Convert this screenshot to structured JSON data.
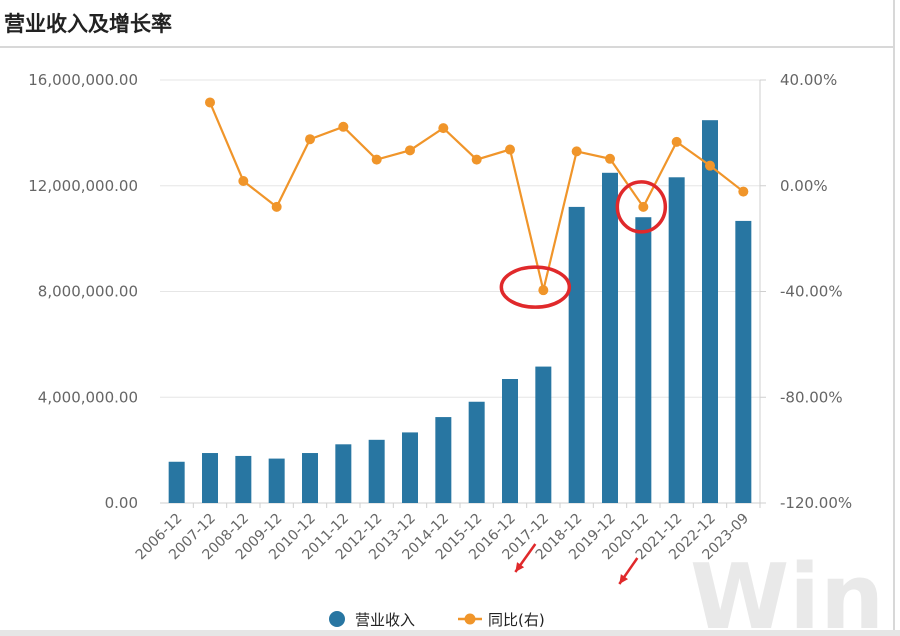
{
  "page": {
    "title": "营业收入及增长率"
  },
  "chart_data": {
    "type": "bar",
    "categories": [
      "2006-12",
      "2007-12",
      "2008-12",
      "2009-12",
      "2010-12",
      "2011-12",
      "2012-12",
      "2013-12",
      "2014-12",
      "2015-12",
      "2016-12",
      "2017-12",
      "2018-12",
      "2019-12",
      "2020-12",
      "2021-12",
      "2022-12",
      "2023-09"
    ],
    "series": [
      {
        "name": "营业收入",
        "type": "bar",
        "axis": "left",
        "color": "#2876a2",
        "values": [
          1560000,
          1890000,
          1780000,
          1680000,
          1890000,
          2220000,
          2390000,
          2670000,
          3250000,
          3830000,
          4690000,
          5160000,
          11200000,
          12490000,
          10810000,
          12320000,
          14480000,
          10670000
        ]
      },
      {
        "name": "同比(右)",
        "type": "line",
        "axis": "right",
        "color": "#f0952a",
        "values": [
          null,
          31.5,
          1.8,
          -8.0,
          17.6,
          22.3,
          9.9,
          13.4,
          21.8,
          9.9,
          13.7,
          -39.5,
          13.0,
          10.2,
          -8.0,
          16.6,
          7.6,
          -2.2
        ]
      }
    ],
    "yleft": {
      "ylim": [
        0,
        16000000
      ],
      "ticks": [
        0,
        4000000,
        8000000,
        12000000,
        16000000
      ],
      "tick_labels": [
        "0.00",
        "4,000,000.00",
        "8,000,000.00",
        "12,000,000.00",
        "16,000,000.00"
      ]
    },
    "yright": {
      "ylim": [
        -120,
        40
      ],
      "ticks": [
        -120,
        -80,
        -40,
        0,
        40
      ],
      "tick_labels": [
        "-120.00%",
        "-80.00%",
        "-40.00%",
        "0.00%",
        "40.00%"
      ]
    },
    "grid": true,
    "legend": "bottom-center",
    "annotations": [
      "red-circle-2017-12",
      "red-circle-2020-12",
      "red-arrow-2017-12",
      "red-arrow-2020-12"
    ]
  },
  "legend": [
    {
      "label": "营业收入"
    },
    {
      "label": "同比(右)"
    }
  ],
  "watermark": "Win.d"
}
